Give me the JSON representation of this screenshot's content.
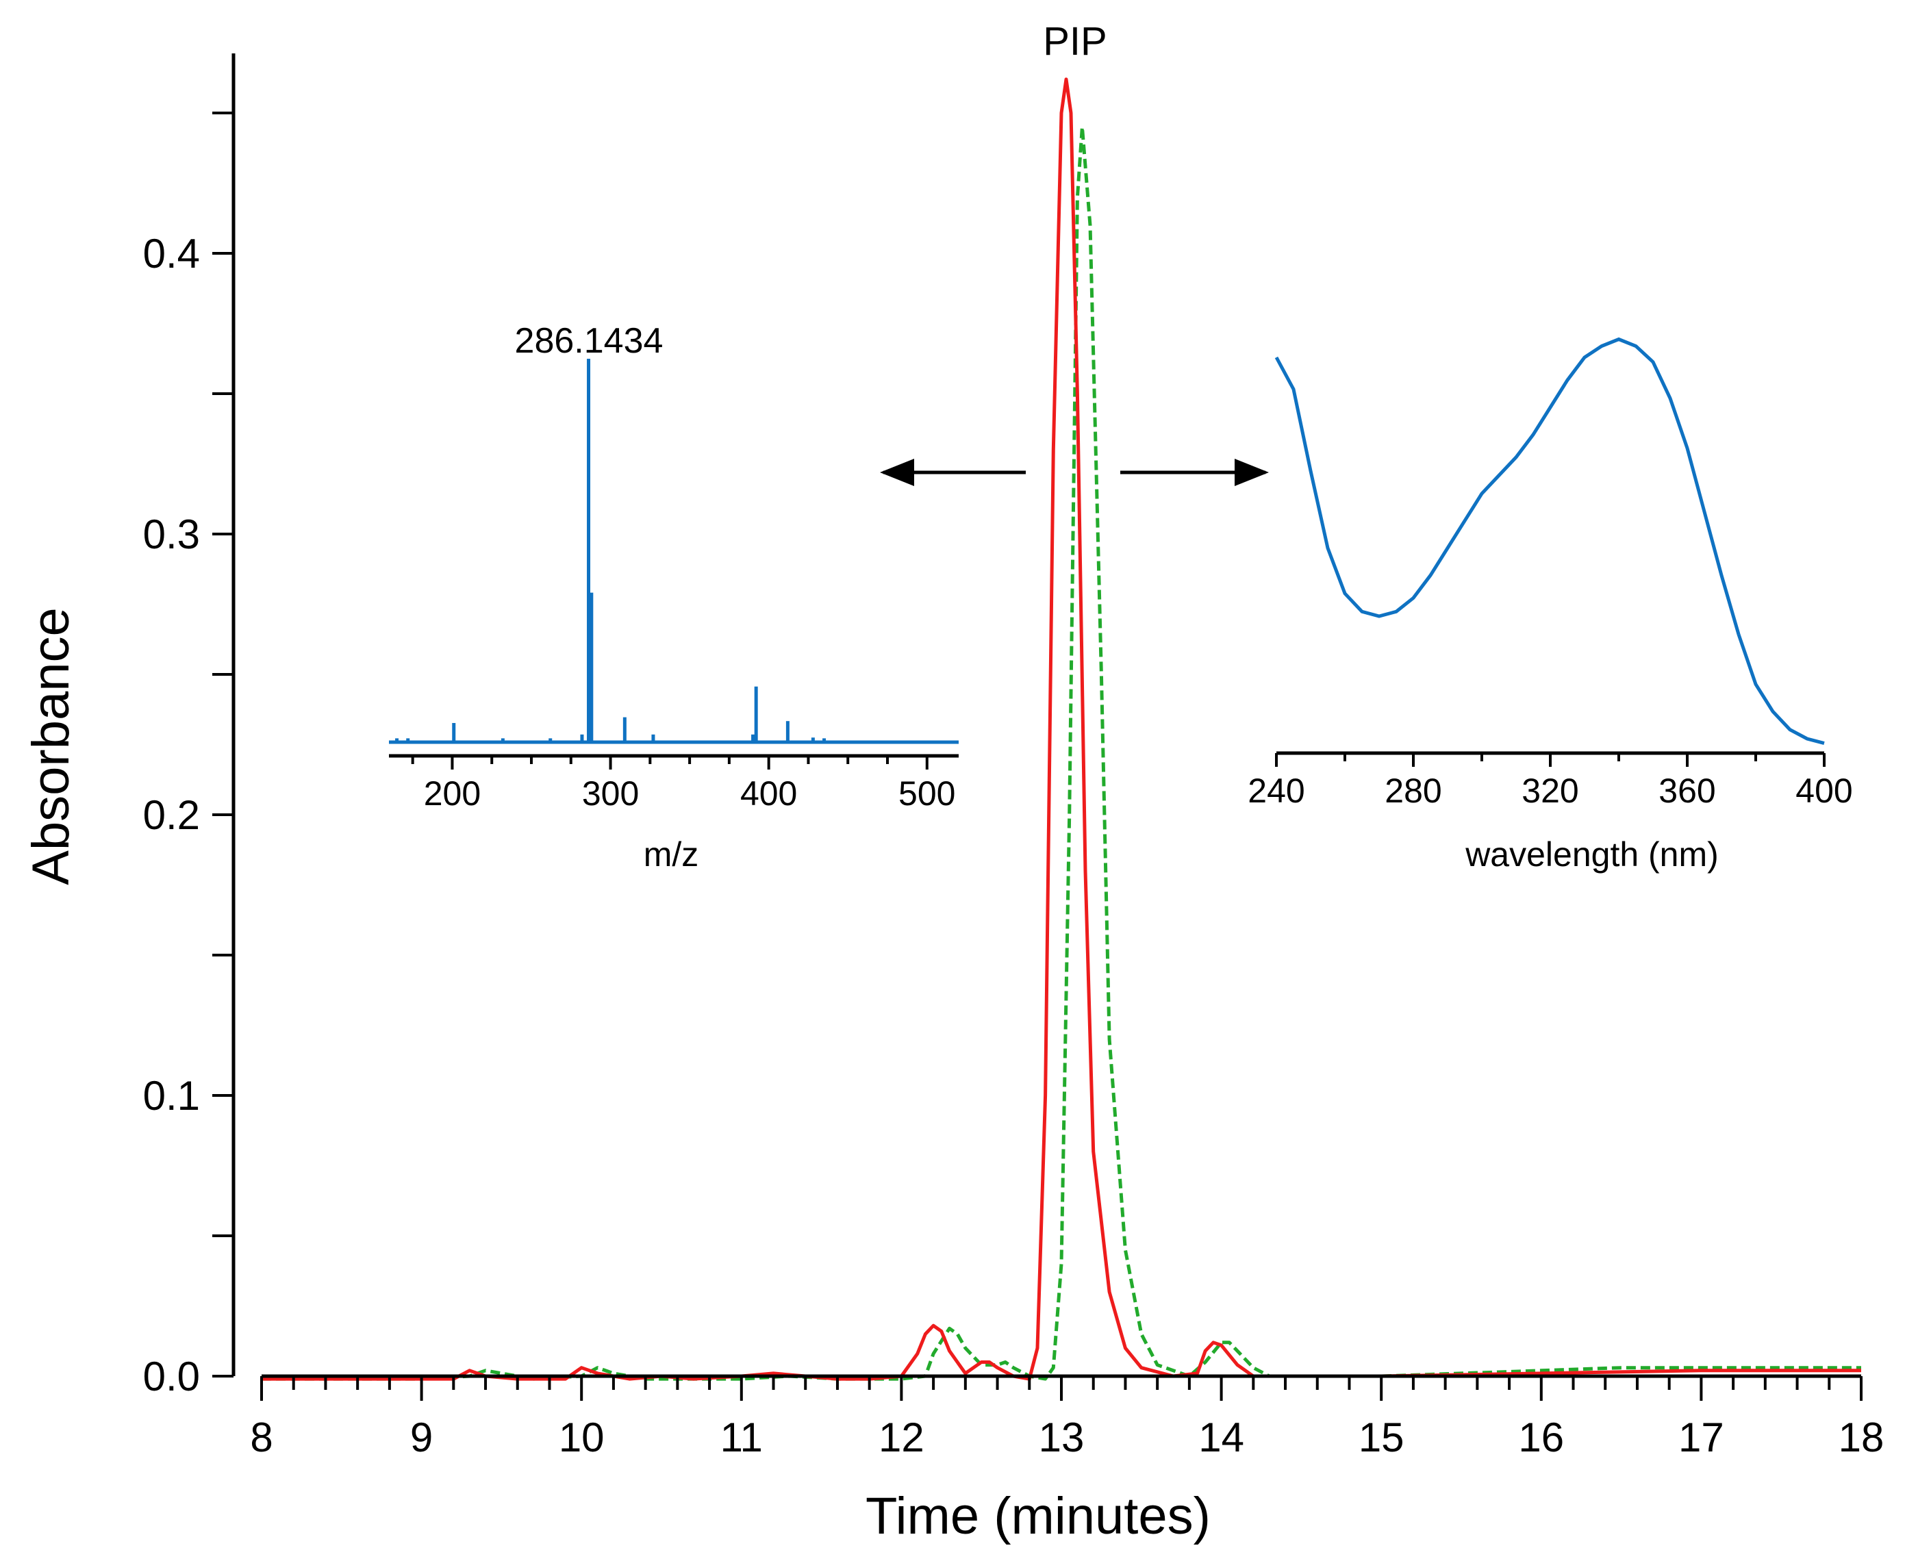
{
  "chart_data": [
    {
      "id": "chromatogram",
      "type": "line",
      "title": "",
      "xlabel": "Time (minutes)",
      "ylabel": "Absorbance",
      "xlim": [
        8,
        18
      ],
      "ylim": [
        0,
        0.46
      ],
      "x_ticks": [
        8,
        9,
        10,
        11,
        12,
        13,
        14,
        15,
        16,
        17,
        18
      ],
      "x_tick_labels": [
        "8",
        "9",
        "10",
        "11",
        "12",
        "13",
        "14",
        "15",
        "16",
        "17",
        "18"
      ],
      "y_ticks": [
        0,
        0.1,
        0.2,
        0.3,
        0.4
      ],
      "y_tick_labels": [
        "0.0",
        "0.1",
        "0.2",
        "0.3",
        "0.4"
      ],
      "annotations": [
        {
          "text": "PIP",
          "x": 13.03,
          "y": 0.465
        }
      ],
      "series": [
        {
          "name": "red trace",
          "color": "#ee1c1c",
          "style": "solid",
          "x": [
            8.0,
            8.5,
            9.0,
            9.2,
            9.3,
            9.4,
            9.6,
            9.9,
            10.0,
            10.1,
            10.3,
            10.5,
            10.7,
            11.0,
            11.2,
            11.4,
            11.6,
            11.8,
            12.0,
            12.1,
            12.15,
            12.2,
            12.25,
            12.3,
            12.4,
            12.5,
            12.55,
            12.6,
            12.7,
            12.8,
            12.85,
            12.9,
            12.95,
            13.0,
            13.03,
            13.06,
            13.1,
            13.15,
            13.2,
            13.3,
            13.4,
            13.5,
            13.7,
            13.85,
            13.9,
            13.95,
            14.0,
            14.1,
            14.2,
            14.4,
            15.0,
            16.0,
            17.0,
            18.0
          ],
          "y": [
            -0.001,
            -0.001,
            -0.001,
            -0.001,
            0.002,
            0.0,
            -0.001,
            -0.001,
            0.003,
            0.001,
            -0.001,
            0.0,
            -0.001,
            0.0,
            0.001,
            0.0,
            -0.001,
            -0.001,
            0.0,
            0.008,
            0.015,
            0.018,
            0.016,
            0.009,
            0.001,
            0.005,
            0.005,
            0.003,
            0.0,
            -0.001,
            0.01,
            0.1,
            0.33,
            0.45,
            0.462,
            0.45,
            0.35,
            0.18,
            0.08,
            0.03,
            0.01,
            0.003,
            0.0,
            0.001,
            0.009,
            0.012,
            0.011,
            0.004,
            0.0,
            0.0,
            0.0,
            0.001,
            0.002,
            0.002
          ]
        },
        {
          "name": "green trace",
          "color": "#22aa2c",
          "style": "dashed",
          "x": [
            8.0,
            8.5,
            9.0,
            9.3,
            9.4,
            9.5,
            9.7,
            10.0,
            10.1,
            10.2,
            10.4,
            10.7,
            11.0,
            11.3,
            11.6,
            12.0,
            12.15,
            12.2,
            12.3,
            12.35,
            12.4,
            12.5,
            12.6,
            12.65,
            12.7,
            12.8,
            12.9,
            12.95,
            13.0,
            13.05,
            13.1,
            13.13,
            13.18,
            13.25,
            13.3,
            13.4,
            13.5,
            13.6,
            13.8,
            13.9,
            14.0,
            14.05,
            14.1,
            14.2,
            14.3,
            14.5,
            15.0,
            16.0,
            16.5,
            17.0,
            17.5,
            18.0
          ],
          "y": [
            -0.001,
            -0.001,
            -0.001,
            0.0,
            0.002,
            0.001,
            -0.001,
            0.0,
            0.003,
            0.001,
            -0.001,
            -0.001,
            -0.001,
            0.0,
            -0.001,
            -0.001,
            0.0,
            0.008,
            0.017,
            0.015,
            0.01,
            0.004,
            0.004,
            0.005,
            0.003,
            0.0,
            -0.001,
            0.003,
            0.04,
            0.2,
            0.42,
            0.445,
            0.41,
            0.25,
            0.12,
            0.045,
            0.015,
            0.004,
            0.0,
            0.005,
            0.012,
            0.012,
            0.009,
            0.003,
            0.0,
            0.0,
            0.0,
            0.002,
            0.003,
            0.003,
            0.003,
            0.003
          ]
        }
      ]
    },
    {
      "id": "mass-spectrum-inset",
      "type": "bar",
      "title": "",
      "xlabel": "m/z",
      "ylabel": "",
      "xlim": [
        160,
        520
      ],
      "ylim": [
        0,
        1
      ],
      "x_ticks": [
        200,
        300,
        400,
        500
      ],
      "x_tick_labels": [
        "200",
        "300",
        "400",
        "500"
      ],
      "peak_label": "286.1434",
      "color": "#0f72c2",
      "x": [
        165,
        172,
        201,
        232,
        262,
        282,
        286.14,
        288,
        309,
        327,
        390,
        392,
        412,
        428,
        435
      ],
      "values": [
        0.01,
        0.01,
        0.05,
        0.01,
        0.01,
        0.02,
        1.0,
        0.39,
        0.065,
        0.02,
        0.02,
        0.145,
        0.055,
        0.012,
        0.01
      ]
    },
    {
      "id": "uv-spectrum-inset",
      "type": "line",
      "title": "",
      "xlabel": "wavelength (nm)",
      "ylabel": "",
      "xlim": [
        240,
        400
      ],
      "ylim": [
        0,
        1
      ],
      "x_ticks": [
        240,
        280,
        320,
        360,
        400
      ],
      "x_tick_labels": [
        "240",
        "280",
        "320",
        "360",
        "400"
      ],
      "color": "#0f72c2",
      "x": [
        240,
        245,
        250,
        255,
        260,
        265,
        270,
        275,
        280,
        285,
        290,
        295,
        300,
        305,
        310,
        315,
        320,
        325,
        330,
        335,
        340,
        345,
        350,
        355,
        360,
        365,
        370,
        375,
        380,
        385,
        390,
        395,
        400
      ],
      "y": [
        0.92,
        0.85,
        0.67,
        0.5,
        0.4,
        0.36,
        0.35,
        0.36,
        0.39,
        0.44,
        0.5,
        0.56,
        0.62,
        0.66,
        0.7,
        0.75,
        0.81,
        0.87,
        0.92,
        0.945,
        0.96,
        0.945,
        0.91,
        0.83,
        0.72,
        0.58,
        0.44,
        0.31,
        0.2,
        0.14,
        0.1,
        0.08,
        0.07
      ]
    }
  ]
}
